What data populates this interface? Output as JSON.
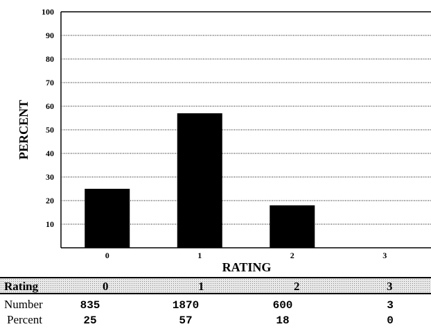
{
  "chart_data": {
    "type": "bar",
    "categories": [
      "0",
      "1",
      "2",
      "3"
    ],
    "values": [
      25,
      57,
      18,
      0
    ],
    "xlabel": "RATING",
    "ylabel": "PERCENT",
    "ylim": [
      0,
      100
    ],
    "yticks": [
      10,
      20,
      30,
      40,
      50,
      60,
      70,
      80,
      90,
      100
    ],
    "grid": true,
    "bar_color": "#000000"
  },
  "table": {
    "header": [
      "Rating",
      "0",
      "1",
      "2",
      "3"
    ],
    "rows": [
      {
        "label": "Number",
        "values": [
          "835",
          "1870",
          "600",
          "3"
        ]
      },
      {
        "label": "Percent",
        "values": [
          "25",
          "57",
          "18",
          "0"
        ]
      }
    ]
  }
}
